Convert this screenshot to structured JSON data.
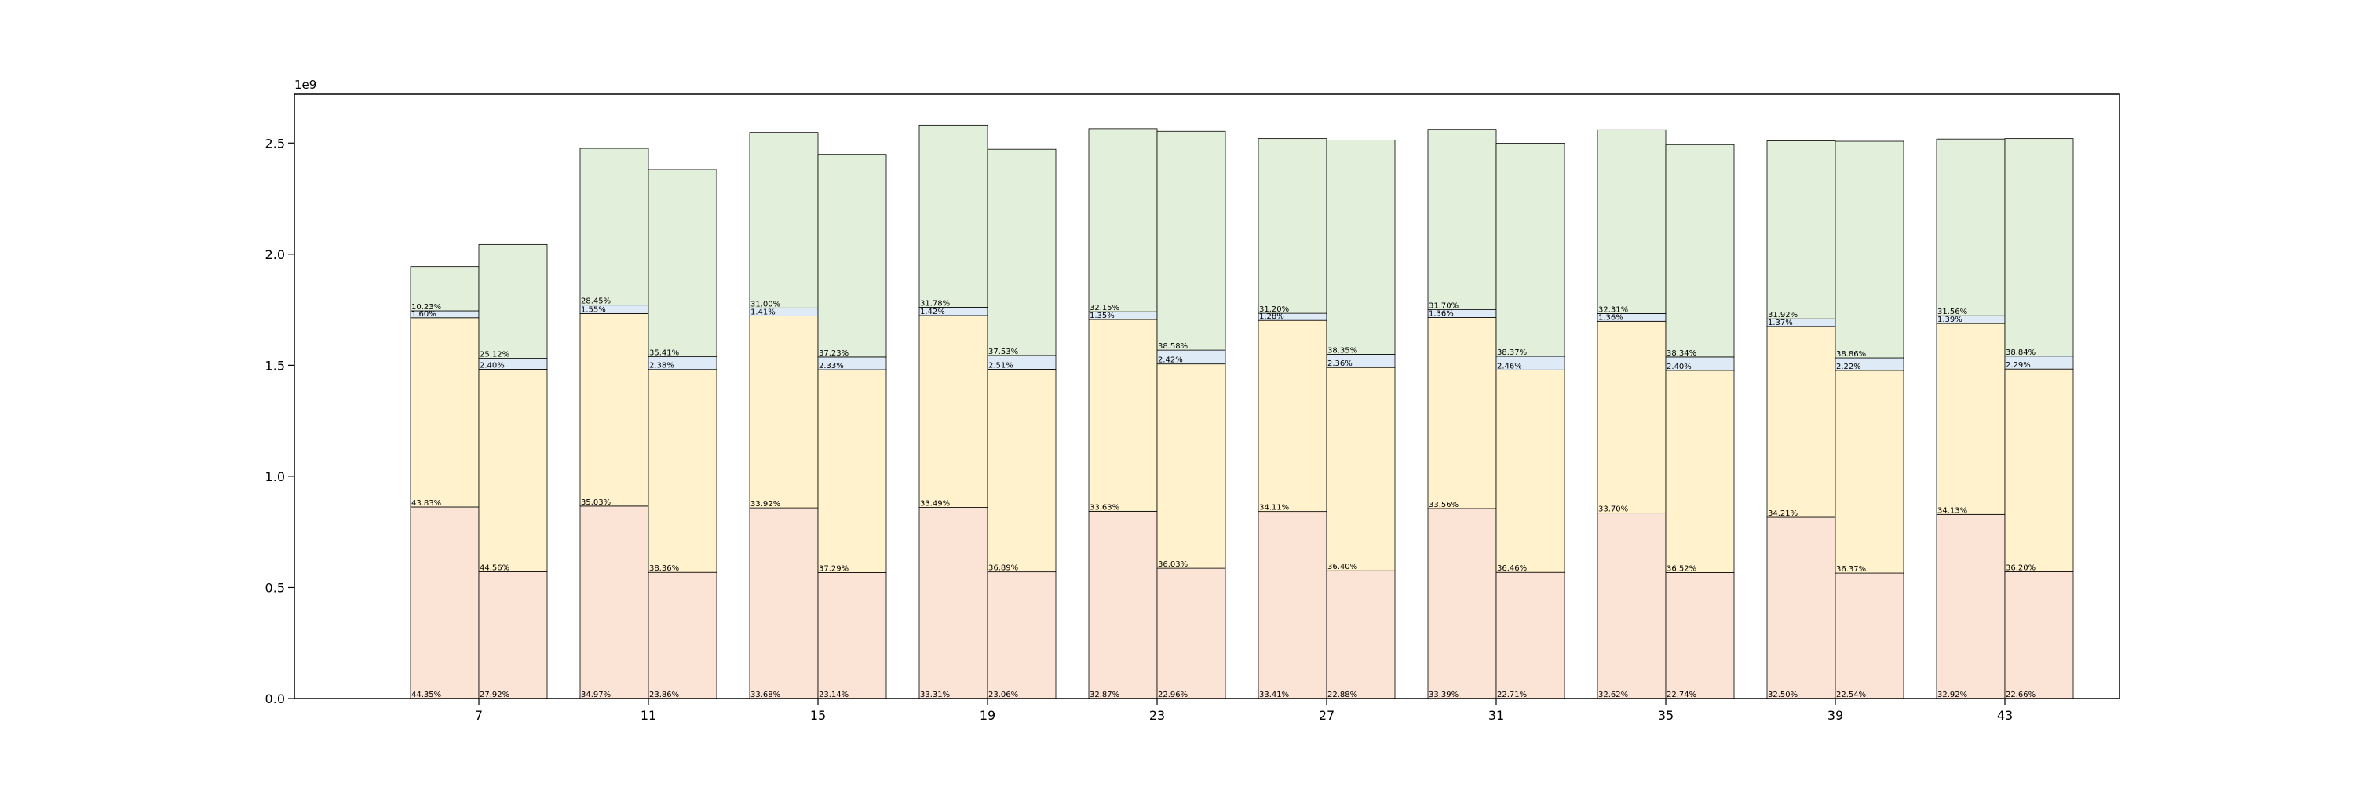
{
  "chart_data": {
    "type": "bar",
    "stacked": true,
    "grouped_pairs": true,
    "offset_label": "1e9",
    "ylim": [
      0,
      2.72
    ],
    "y_ticks": [
      0.0,
      0.5,
      1.0,
      1.5,
      2.0,
      2.5
    ],
    "y_tick_labels": [
      "0.0",
      "0.5",
      "1.0",
      "1.5",
      "2.0",
      "2.5"
    ],
    "categories": [
      "7",
      "11",
      "15",
      "19",
      "23",
      "27",
      "31",
      "35",
      "39",
      "43"
    ],
    "segment_colors": [
      "#fbe3d6",
      "#fff2cc",
      "#deebf7",
      "#e2efda"
    ],
    "edge_color": "#000000",
    "grid": false,
    "legend": "none",
    "groups": [
      {
        "x": "7",
        "bars": [
          {
            "segments": [
              0.862,
              0.852,
              0.031,
              0.199
            ],
            "labels": [
              "44.35%",
              "43.83%",
              "1.60%",
              "10.23%"
            ]
          },
          {
            "segments": [
              0.571,
              0.911,
              0.049,
              0.513
            ],
            "labels": [
              "27.92%",
              "44.56%",
              "2.40%",
              "25.12%"
            ]
          }
        ]
      },
      {
        "x": "11",
        "bars": [
          {
            "segments": [
              0.866,
              0.867,
              0.038,
              0.705
            ],
            "labels": [
              "34.97%",
              "35.03%",
              "1.55%",
              "28.45%"
            ]
          },
          {
            "segments": [
              0.568,
              0.913,
              0.057,
              0.843
            ],
            "labels": [
              "23.86%",
              "38.36%",
              "2.38%",
              "35.41%"
            ]
          }
        ]
      },
      {
        "x": "15",
        "bars": [
          {
            "segments": [
              0.858,
              0.864,
              0.036,
              0.79
            ],
            "labels": [
              "33.68%",
              "33.92%",
              "1.41%",
              "31.00%"
            ]
          },
          {
            "segments": [
              0.567,
              0.913,
              0.057,
              0.912
            ],
            "labels": [
              "23.14%",
              "37.29%",
              "2.33%",
              "37.23%"
            ]
          }
        ]
      },
      {
        "x": "19",
        "bars": [
          {
            "segments": [
              0.86,
              0.864,
              0.037,
              0.82
            ],
            "labels": [
              "33.31%",
              "33.49%",
              "1.42%",
              "31.78%"
            ]
          },
          {
            "segments": [
              0.57,
              0.912,
              0.062,
              0.928
            ],
            "labels": [
              "23.06%",
              "36.89%",
              "2.51%",
              "37.53%"
            ]
          }
        ]
      },
      {
        "x": "23",
        "bars": [
          {
            "segments": [
              0.843,
              0.863,
              0.035,
              0.824
            ],
            "labels": [
              "32.87%",
              "33.63%",
              "1.35%",
              "32.15%"
            ]
          },
          {
            "segments": [
              0.586,
              0.92,
              0.062,
              0.985
            ],
            "labels": [
              "22.96%",
              "36.03%",
              "2.42%",
              "38.58%"
            ]
          }
        ]
      },
      {
        "x": "27",
        "bars": [
          {
            "segments": [
              0.842,
              0.86,
              0.032,
              0.786
            ],
            "labels": [
              "33.41%",
              "34.11%",
              "1.28%",
              "31.20%"
            ]
          },
          {
            "segments": [
              0.575,
              0.915,
              0.059,
              0.964
            ],
            "labels": [
              "22.88%",
              "36.40%",
              "2.36%",
              "38.35%"
            ]
          }
        ]
      },
      {
        "x": "31",
        "bars": [
          {
            "segments": [
              0.855,
              0.86,
              0.035,
              0.812
            ],
            "labels": [
              "33.39%",
              "33.56%",
              "1.36%",
              "31.70%"
            ]
          },
          {
            "segments": [
              0.568,
              0.911,
              0.061,
              0.959
            ],
            "labels": [
              "22.71%",
              "36.46%",
              "2.46%",
              "38.37%"
            ]
          }
        ]
      },
      {
        "x": "35",
        "bars": [
          {
            "segments": [
              0.835,
              0.863,
              0.035,
              0.827
            ],
            "labels": [
              "32.62%",
              "33.70%",
              "1.36%",
              "32.31%"
            ]
          },
          {
            "segments": [
              0.567,
              0.91,
              0.06,
              0.956
            ],
            "labels": [
              "22.74%",
              "36.52%",
              "2.40%",
              "38.34%"
            ]
          }
        ]
      },
      {
        "x": "39",
        "bars": [
          {
            "segments": [
              0.816,
              0.859,
              0.034,
              0.801
            ],
            "labels": [
              "32.50%",
              "34.21%",
              "1.37%",
              "31.92%"
            ]
          },
          {
            "segments": [
              0.565,
              0.912,
              0.056,
              0.975
            ],
            "labels": [
              "22.54%",
              "36.37%",
              "2.22%",
              "38.86%"
            ]
          }
        ]
      },
      {
        "x": "43",
        "bars": [
          {
            "segments": [
              0.829,
              0.859,
              0.035,
              0.795
            ],
            "labels": [
              "32.92%",
              "34.13%",
              "1.39%",
              "31.56%"
            ]
          },
          {
            "segments": [
              0.571,
              0.912,
              0.058,
              0.979
            ],
            "labels": [
              "22.66%",
              "36.20%",
              "2.29%",
              "38.84%"
            ]
          }
        ]
      }
    ]
  }
}
